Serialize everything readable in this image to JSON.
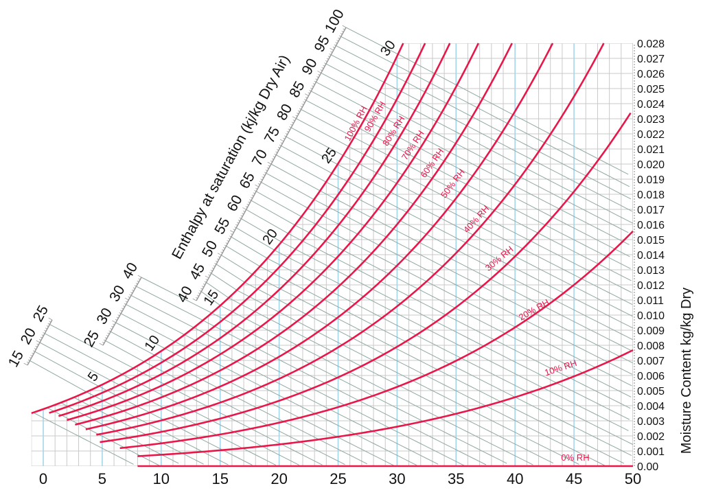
{
  "chart_data": {
    "type": "line",
    "title": "",
    "xlabel": "",
    "ylabel": "Moisture Content kg/kg Dry",
    "xlim": [
      -1,
      50
    ],
    "ylim": [
      0,
      0.028
    ],
    "grid": true,
    "x_ticks": [
      "0",
      "5",
      "10",
      "15",
      "20",
      "25",
      "30",
      "35",
      "40",
      "45",
      "50"
    ],
    "y_ticks": [
      "0.00",
      "0.001",
      "0.002",
      "0.003",
      "0.004",
      "0.005",
      "0.006",
      "0.007",
      "0.008",
      "0.009",
      "0.010",
      "0.011",
      "0.012",
      "0.013",
      "0.014",
      "0.015",
      "0.016",
      "0.017",
      "0.018",
      "0.019",
      "0.020",
      "0.021",
      "0.022",
      "0.023",
      "0.024",
      "0.025",
      "0.026",
      "0.027",
      "0.028"
    ],
    "series": [
      {
        "name": "100% RH",
        "rh": 100,
        "start_temp": -1
      },
      {
        "name": "90% RH",
        "rh": 90,
        "start_temp": 0.5
      },
      {
        "name": "80% RH",
        "rh": 80,
        "start_temp": 1.3
      },
      {
        "name": "70% RH",
        "rh": 70,
        "start_temp": 2.0
      },
      {
        "name": "60% RH",
        "rh": 60,
        "start_temp": 2.7
      },
      {
        "name": "50% RH",
        "rh": 50,
        "start_temp": 3.6
      },
      {
        "name": "40% RH",
        "rh": 40,
        "start_temp": 4.5
      },
      {
        "name": "30% RH",
        "rh": 30,
        "start_temp": 4.8
      },
      {
        "name": "20% RH",
        "rh": 20,
        "start_temp": 6.5
      },
      {
        "name": "10% RH",
        "rh": 10,
        "start_temp": 8
      },
      {
        "name": "0% RH",
        "rh": 0,
        "start_temp": 8
      }
    ],
    "saturation_temp_labels": [
      "5",
      "10",
      "15",
      "20",
      "25",
      "30"
    ],
    "enthalpy_axis": {
      "label": "Enthalpy at saturation (kj/kg Dry Air)",
      "scale_main": [
        "40",
        "45",
        "50",
        "55",
        "60",
        "65",
        "70",
        "75",
        "80",
        "85",
        "90",
        "95",
        "100"
      ],
      "scale_mid": [
        "25",
        "30",
        "30",
        "40"
      ],
      "scale_low": [
        "15",
        "20",
        "25"
      ]
    },
    "colors": {
      "rh_curve": "#e8174a",
      "grid": "#c9c9c9",
      "grid_major": "#9fd3ea",
      "enthalpy_line": "#8fa8a2"
    }
  }
}
